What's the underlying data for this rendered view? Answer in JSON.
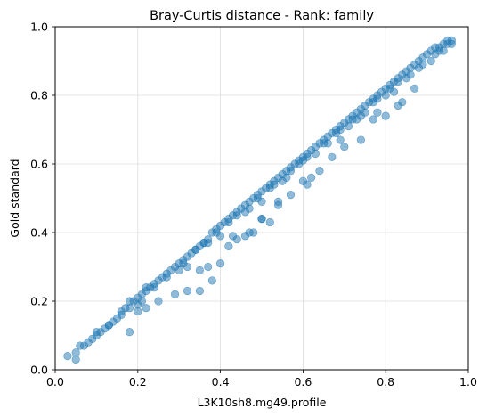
{
  "chart_data": {
    "type": "scatter",
    "title": "Bray-Curtis distance - Rank: family",
    "xlabel": "L3K10sh8.mg49.profile",
    "ylabel": "Gold standard",
    "xlim": [
      0,
      1
    ],
    "ylim": [
      0,
      1
    ],
    "x_ticks": [
      "0.0",
      "0.2",
      "0.4",
      "0.6",
      "0.8",
      "1.0"
    ],
    "y_ticks": [
      "0.0",
      "0.2",
      "0.4",
      "0.6",
      "0.8",
      "1.0"
    ],
    "grid": true,
    "legend": false,
    "point_color": "#1f77b4",
    "point_alpha": 0.5,
    "series": [
      {
        "x": [
          0.03,
          0.05,
          0.06,
          0.07,
          0.08,
          0.09,
          0.1,
          0.11,
          0.12,
          0.13,
          0.14,
          0.15,
          0.16,
          0.17,
          0.18,
          0.18,
          0.19,
          0.2,
          0.21,
          0.22,
          0.23,
          0.24,
          0.25,
          0.26,
          0.27,
          0.28,
          0.29,
          0.3,
          0.31,
          0.32,
          0.33,
          0.34,
          0.35,
          0.36,
          0.37,
          0.38,
          0.39,
          0.4,
          0.41,
          0.42,
          0.43,
          0.44,
          0.45,
          0.46,
          0.47,
          0.48,
          0.49,
          0.5,
          0.51,
          0.52,
          0.53,
          0.54,
          0.55,
          0.56,
          0.57,
          0.58,
          0.59,
          0.6,
          0.61,
          0.62,
          0.63,
          0.64,
          0.65,
          0.66,
          0.67,
          0.68,
          0.69,
          0.7,
          0.71,
          0.72,
          0.73,
          0.74,
          0.75,
          0.76,
          0.77,
          0.78,
          0.79,
          0.8,
          0.81,
          0.82,
          0.83,
          0.84,
          0.85,
          0.86,
          0.87,
          0.88,
          0.89,
          0.9,
          0.91,
          0.92,
          0.93,
          0.94,
          0.95,
          0.96,
          0.96,
          0.05,
          0.21,
          0.22,
          0.31,
          0.32,
          0.36,
          0.39,
          0.42,
          0.46,
          0.49,
          0.52,
          0.55,
          0.57,
          0.59,
          0.61,
          0.66,
          0.69,
          0.72,
          0.75,
          0.78,
          0.81,
          0.85,
          0.88,
          0.92,
          0.95,
          0.1,
          0.13,
          0.16,
          0.2,
          0.24,
          0.27,
          0.3,
          0.34,
          0.37,
          0.4,
          0.44,
          0.47,
          0.5,
          0.53,
          0.56,
          0.6,
          0.63,
          0.65,
          0.68,
          0.71,
          0.74,
          0.77,
          0.8,
          0.83,
          0.86,
          0.89,
          0.91,
          0.93,
          0.94,
          0.2,
          0.35,
          0.37,
          0.42,
          0.43,
          0.48,
          0.5,
          0.54,
          0.62,
          0.69,
          0.73,
          0.78,
          0.82,
          0.84
        ],
        "y": [
          0.04,
          0.05,
          0.07,
          0.07,
          0.08,
          0.09,
          0.1,
          0.11,
          0.12,
          0.13,
          0.14,
          0.15,
          0.17,
          0.18,
          0.18,
          0.2,
          0.2,
          0.21,
          0.22,
          0.23,
          0.24,
          0.25,
          0.26,
          0.27,
          0.28,
          0.29,
          0.3,
          0.31,
          0.32,
          0.33,
          0.34,
          0.35,
          0.36,
          0.37,
          0.38,
          0.4,
          0.41,
          0.42,
          0.43,
          0.44,
          0.45,
          0.46,
          0.47,
          0.48,
          0.49,
          0.5,
          0.51,
          0.52,
          0.53,
          0.54,
          0.55,
          0.56,
          0.57,
          0.58,
          0.59,
          0.6,
          0.61,
          0.62,
          0.63,
          0.64,
          0.65,
          0.66,
          0.67,
          0.68,
          0.69,
          0.7,
          0.71,
          0.72,
          0.73,
          0.74,
          0.75,
          0.76,
          0.77,
          0.78,
          0.79,
          0.8,
          0.81,
          0.82,
          0.83,
          0.84,
          0.85,
          0.86,
          0.87,
          0.88,
          0.89,
          0.9,
          0.91,
          0.92,
          0.93,
          0.94,
          0.94,
          0.95,
          0.96,
          0.96,
          0.95,
          0.03,
          0.2,
          0.24,
          0.31,
          0.3,
          0.37,
          0.4,
          0.43,
          0.46,
          0.5,
          0.53,
          0.55,
          0.58,
          0.6,
          0.62,
          0.66,
          0.7,
          0.73,
          0.75,
          0.79,
          0.82,
          0.85,
          0.88,
          0.92,
          0.95,
          0.11,
          0.13,
          0.16,
          0.19,
          0.24,
          0.27,
          0.29,
          0.35,
          0.37,
          0.39,
          0.45,
          0.47,
          0.49,
          0.54,
          0.56,
          0.61,
          0.63,
          0.66,
          0.69,
          0.71,
          0.74,
          0.78,
          0.8,
          0.84,
          0.86,
          0.89,
          0.9,
          0.93,
          0.93,
          0.17,
          0.23,
          0.3,
          0.36,
          0.39,
          0.4,
          0.44,
          0.49,
          0.56,
          0.67,
          0.73,
          0.75,
          0.81,
          0.78
        ]
      },
      {
        "x": [
          0.18,
          0.22,
          0.25,
          0.29,
          0.32,
          0.35,
          0.38,
          0.4,
          0.44,
          0.46,
          0.47,
          0.5,
          0.52,
          0.54,
          0.57,
          0.6,
          0.61,
          0.64,
          0.67,
          0.7,
          0.74,
          0.77,
          0.8,
          0.83,
          0.87
        ],
        "y": [
          0.11,
          0.18,
          0.2,
          0.22,
          0.23,
          0.29,
          0.26,
          0.31,
          0.38,
          0.39,
          0.4,
          0.44,
          0.43,
          0.48,
          0.51,
          0.55,
          0.54,
          0.58,
          0.62,
          0.65,
          0.67,
          0.73,
          0.74,
          0.77,
          0.82
        ]
      }
    ]
  }
}
